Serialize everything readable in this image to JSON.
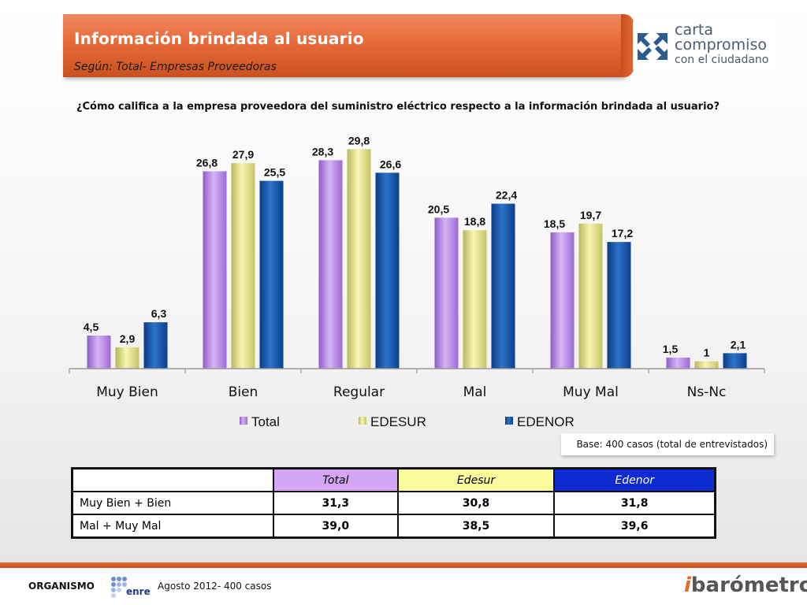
{
  "header": {
    "title": "Información brindada al usuario",
    "subtitle": "Según: Total- Empresas Proveedoras"
  },
  "logo": {
    "line1": "carta",
    "line2": "compromiso",
    "line3": "con el ciudadano"
  },
  "question": "¿Cómo califica a la empresa proveedora del suministro eléctrico respecto a la información brindada al usuario?",
  "base_note": "Base: 400  casos (total de entrevistados)",
  "chart_data": {
    "type": "bar",
    "title": "",
    "xlabel": "",
    "ylabel": "",
    "categories": [
      "Muy Bien",
      "Bien",
      "Regular",
      "Mal",
      "Muy Mal",
      "Ns-Nc"
    ],
    "series": [
      {
        "name": "Total",
        "values": [
          4.5,
          26.8,
          28.3,
          20.5,
          18.5,
          1.5
        ],
        "labels": [
          "4,5",
          "26,8",
          "28,3",
          "20,5",
          "18,5",
          "1,5"
        ],
        "color": "#b98be8"
      },
      {
        "name": "EDESUR",
        "values": [
          2.9,
          27.9,
          29.8,
          18.8,
          19.7,
          1
        ],
        "labels": [
          "2,9",
          "27,9",
          "29,8",
          "18,8",
          "19,7",
          "1"
        ],
        "color": "#e8e68a"
      },
      {
        "name": "EDENOR",
        "values": [
          6.3,
          25.5,
          26.6,
          22.4,
          17.2,
          2.1
        ],
        "labels": [
          "6,3",
          "25,5",
          "26,6",
          "22,4",
          "17,2",
          "2,1"
        ],
        "color": "#1454a8"
      }
    ],
    "legend_position": "bottom",
    "grid": false
  },
  "summary_table": {
    "headers": [
      "",
      "Total",
      "Edesur",
      "Edenor"
    ],
    "rows": [
      {
        "label": "Muy Bien +  Bien",
        "total": "31,3",
        "edesur": "30,8",
        "edenor": "31,8"
      },
      {
        "label": "Mal +  Muy Mal",
        "total": "39,0",
        "edesur": "38,5",
        "edenor": "39,6"
      }
    ]
  },
  "footer": {
    "organismo": "ORGANISMO",
    "enre": "enre",
    "date": "Agosto 2012- 400 casos",
    "brand_i": "i",
    "brand": "barómetro"
  }
}
